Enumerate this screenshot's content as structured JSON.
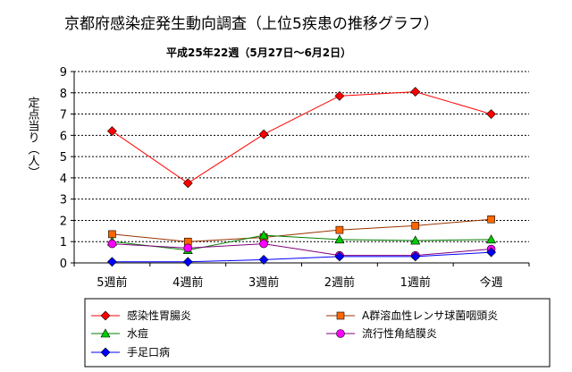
{
  "chart_data": {
    "type": "line",
    "title": "京都府感染症発生動向調査（上位5疾患の推移グラフ）",
    "subtitle": "平成25年22週（5月27日～6月2日）",
    "ylabel": "定点当り（人）",
    "xlabel": "",
    "categories": [
      "5週前",
      "4週前",
      "3週前",
      "2週前",
      "1週前",
      "今週"
    ],
    "ylim": [
      0,
      9
    ],
    "yticks": [
      0,
      1,
      2,
      3,
      4,
      5,
      6,
      7,
      8,
      9
    ],
    "grid": "horizontal-dashed",
    "legend_position": "bottom",
    "series": [
      {
        "name": "感染性胃腸炎",
        "values": [
          6.2,
          3.75,
          6.05,
          7.85,
          8.05,
          7.0
        ],
        "color": "#ff0000",
        "marker": "diamond",
        "marker_color": "#ff0000"
      },
      {
        "name": "A群溶血性レンサ球菌咽頭炎",
        "values": [
          1.35,
          1.0,
          1.2,
          1.55,
          1.75,
          2.05
        ],
        "color": "#993300",
        "marker": "square",
        "marker_color": "#ff6600"
      },
      {
        "name": "水痘",
        "values": [
          1.0,
          0.6,
          1.3,
          1.1,
          1.05,
          1.1
        ],
        "color": "#008000",
        "marker": "triangle",
        "marker_color": "#00cc00"
      },
      {
        "name": "流行性角結膜炎",
        "values": [
          0.9,
          0.7,
          0.9,
          0.35,
          0.35,
          0.65
        ],
        "color": "#800080",
        "marker": "circle",
        "marker_color": "#ff00ff"
      },
      {
        "name": "手足口病",
        "values": [
          0.05,
          0.05,
          0.15,
          0.3,
          0.3,
          0.5
        ],
        "color": "#0000ff",
        "marker": "diamond",
        "marker_color": "#0000ff"
      }
    ]
  }
}
